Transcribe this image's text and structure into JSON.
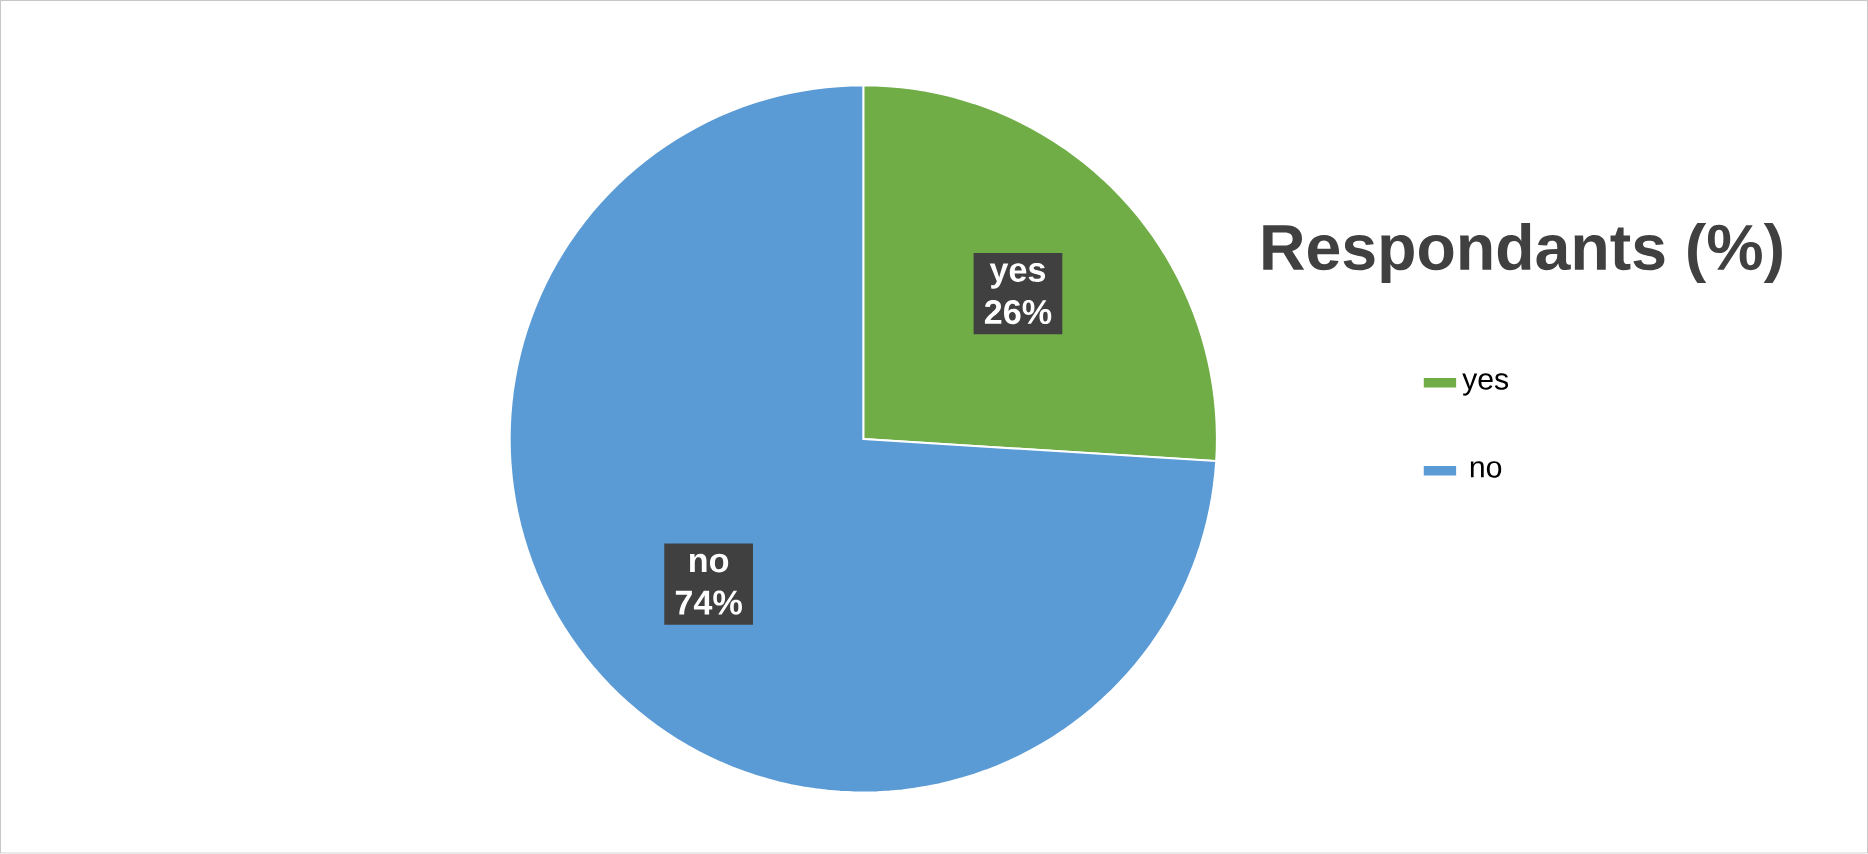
{
  "chart_data": {
    "type": "pie",
    "title": "Respondants (%)",
    "categories": [
      "yes",
      "no"
    ],
    "values": [
      26,
      74
    ],
    "value_labels": [
      "26%",
      "74%"
    ],
    "colors": [
      "#70ad47",
      "#5b9bd5"
    ],
    "legend": "right"
  }
}
